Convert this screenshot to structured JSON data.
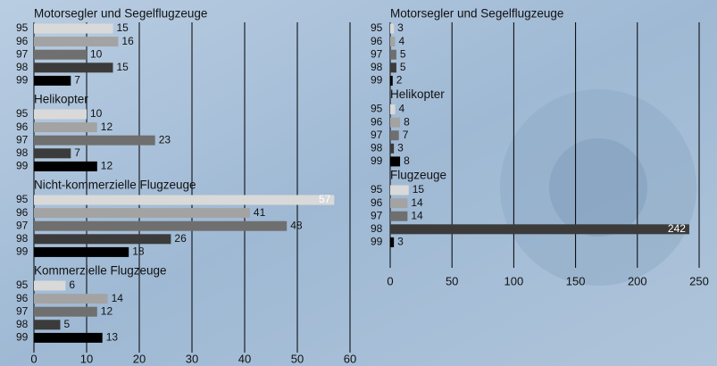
{
  "chart_data": [
    {
      "type": "bar",
      "orientation": "horizontal",
      "colors": [
        "#d9d9d9",
        "#a3a3a3",
        "#6f6f6f",
        "#3b3b3b",
        "#000000"
      ],
      "groups": [
        {
          "title": "Motorsegler und Segelflugzeuge",
          "categories": [
            "95",
            "96",
            "97",
            "98",
            "99"
          ],
          "values": [
            15,
            16,
            10,
            15,
            7
          ]
        },
        {
          "title": "Helikopter",
          "categories": [
            "95",
            "96",
            "97",
            "98",
            "99"
          ],
          "values": [
            10,
            12,
            23,
            7,
            12
          ]
        },
        {
          "title": "Nicht-kommerzielle Flugzeuge",
          "categories": [
            "95",
            "96",
            "97",
            "98",
            "99"
          ],
          "values": [
            57,
            41,
            48,
            26,
            18
          ]
        },
        {
          "title": "Kommerzielle Flugzeuge",
          "categories": [
            "95",
            "96",
            "97",
            "98",
            "99"
          ],
          "values": [
            6,
            14,
            12,
            5,
            13
          ]
        }
      ],
      "xlim": [
        0,
        60
      ],
      "xticks": [
        0,
        10,
        20,
        30,
        40,
        50,
        60
      ],
      "grid": true
    },
    {
      "type": "bar",
      "orientation": "horizontal",
      "colors": [
        "#d9d9d9",
        "#a3a3a3",
        "#6f6f6f",
        "#3b3b3b",
        "#000000"
      ],
      "groups": [
        {
          "title": "Motorsegler und Segelflugzeuge",
          "categories": [
            "95",
            "96",
            "97",
            "98",
            "99"
          ],
          "values": [
            3,
            4,
            5,
            5,
            2
          ]
        },
        {
          "title": "Helikopter",
          "categories": [
            "95",
            "96",
            "97",
            "98",
            "99"
          ],
          "values": [
            4,
            8,
            7,
            3,
            8
          ]
        },
        {
          "title": "Flugzeuge",
          "categories": [
            "95",
            "96",
            "97",
            "98",
            "99"
          ],
          "values": [
            15,
            14,
            14,
            242,
            3
          ]
        }
      ],
      "xlim": [
        0,
        250
      ],
      "xticks": [
        0,
        50,
        100,
        150,
        200,
        250
      ],
      "grid": true
    }
  ]
}
